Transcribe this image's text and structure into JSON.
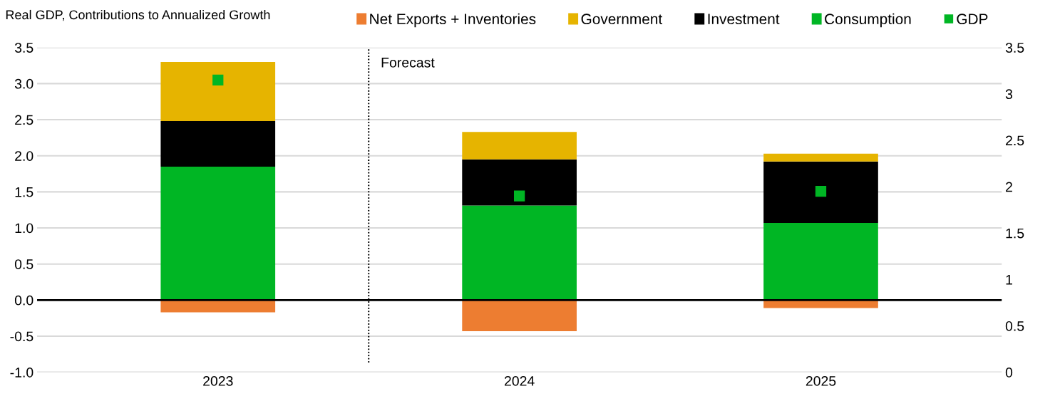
{
  "chart_data": {
    "type": "bar",
    "title": "Real GDP, Contributions to Annualized Growth",
    "categories": [
      "2023",
      "2024",
      "2025"
    ],
    "stacked": true,
    "series": [
      {
        "name": "Net Exports + Inventories",
        "color": "#ed7d31",
        "values": [
          -0.17,
          -0.43,
          -0.11
        ]
      },
      {
        "name": "Consumption",
        "color": "#00b624",
        "values": [
          1.85,
          1.31,
          1.07
        ]
      },
      {
        "name": "Investment",
        "color": "#000000",
        "values": [
          0.63,
          0.64,
          0.85
        ]
      },
      {
        "name": "Government",
        "color": "#e6b400",
        "values": [
          0.82,
          0.38,
          0.11
        ]
      },
      {
        "name": "GDP",
        "type": "scatter",
        "axis": "y2",
        "marker": "square",
        "color": "#00b624",
        "values": [
          3.15,
          1.9,
          1.95
        ]
      }
    ],
    "ylim": [
      -1.0,
      3.5
    ],
    "yticks": [
      {
        "value": -1,
        "label": "-1.0"
      },
      {
        "value": -0.5,
        "label": "-0.5"
      },
      {
        "value": 0,
        "label": "0.0"
      },
      {
        "value": 0.5,
        "label": "0.5"
      },
      {
        "value": 1,
        "label": "1.0"
      },
      {
        "value": 1.5,
        "label": "1.5"
      },
      {
        "value": 2,
        "label": "2.0"
      },
      {
        "value": 2.5,
        "label": "2.5"
      },
      {
        "value": 3,
        "label": "3.0"
      },
      {
        "value": 3.5,
        "label": "3.5"
      }
    ],
    "y2lim": [
      0,
      3.5
    ],
    "y2ticks": [
      0,
      0.5,
      1,
      1.5,
      2,
      2.5,
      3,
      3.5
    ],
    "ref_lines": [
      {
        "axis": "y",
        "value": 0,
        "color": "#000000",
        "line_style": "solid"
      }
    ],
    "annotations": [
      "Forecast"
    ],
    "grid": "y",
    "legend": "top"
  }
}
